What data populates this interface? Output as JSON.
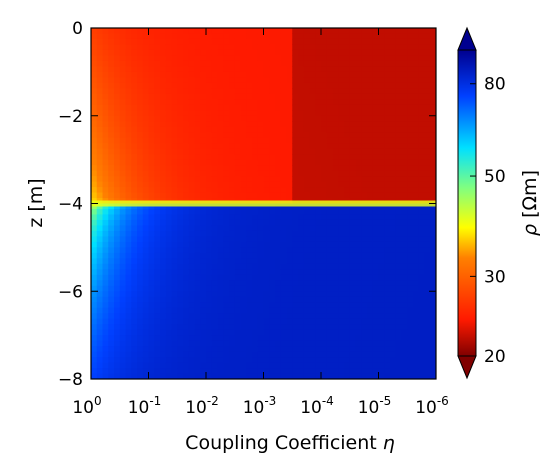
{
  "chart_data": {
    "type": "heatmap",
    "title": "",
    "xlabel": "Coupling Coefficient",
    "xlabel_symbol": "η",
    "ylabel": "z [m]",
    "colorbar_label": "ρ [Ωm]",
    "colorbar_symbol": "ρ",
    "colorbar_unit": "[Ωm]",
    "x_scale": "log (reversed)",
    "x_ticks": [
      {
        "base": "10",
        "exp": "0"
      },
      {
        "base": "10",
        "exp": "-1"
      },
      {
        "base": "10",
        "exp": "-2"
      },
      {
        "base": "10",
        "exp": "-3"
      },
      {
        "base": "10",
        "exp": "-4"
      },
      {
        "base": "10",
        "exp": "-5"
      },
      {
        "base": "10",
        "exp": "-6"
      }
    ],
    "xlim": [
      1,
      1e-06
    ],
    "y_ticks": [
      "0",
      "−2",
      "−4",
      "−6",
      "−8"
    ],
    "y_tick_values": [
      0,
      -2,
      -4,
      -6,
      -8
    ],
    "ylim": [
      -8,
      0
    ],
    "colorbar_ticks": [
      "20",
      "30",
      "50",
      "80"
    ],
    "colorbar_tick_values": [
      20,
      30,
      50,
      80
    ],
    "colorbar_range": [
      20,
      95
    ],
    "colorbar_scale": "log",
    "layer_boundary_depth": -4,
    "upper_layer_resistivity": 24,
    "lower_layer_resistivity": 85,
    "resistivity_at_eta_1": {
      "near_surface": 27,
      "near_boundary": 38,
      "bottom": 75
    },
    "colormap": "jet",
    "colors": {
      "dark_red": "#800000",
      "red": "#ff2000",
      "orange": "#ff8000",
      "yellow": "#ffff00",
      "green": "#80ff80",
      "cyan": "#00c8ff",
      "blue": "#0040ff",
      "dark_blue": "#00008f"
    }
  }
}
